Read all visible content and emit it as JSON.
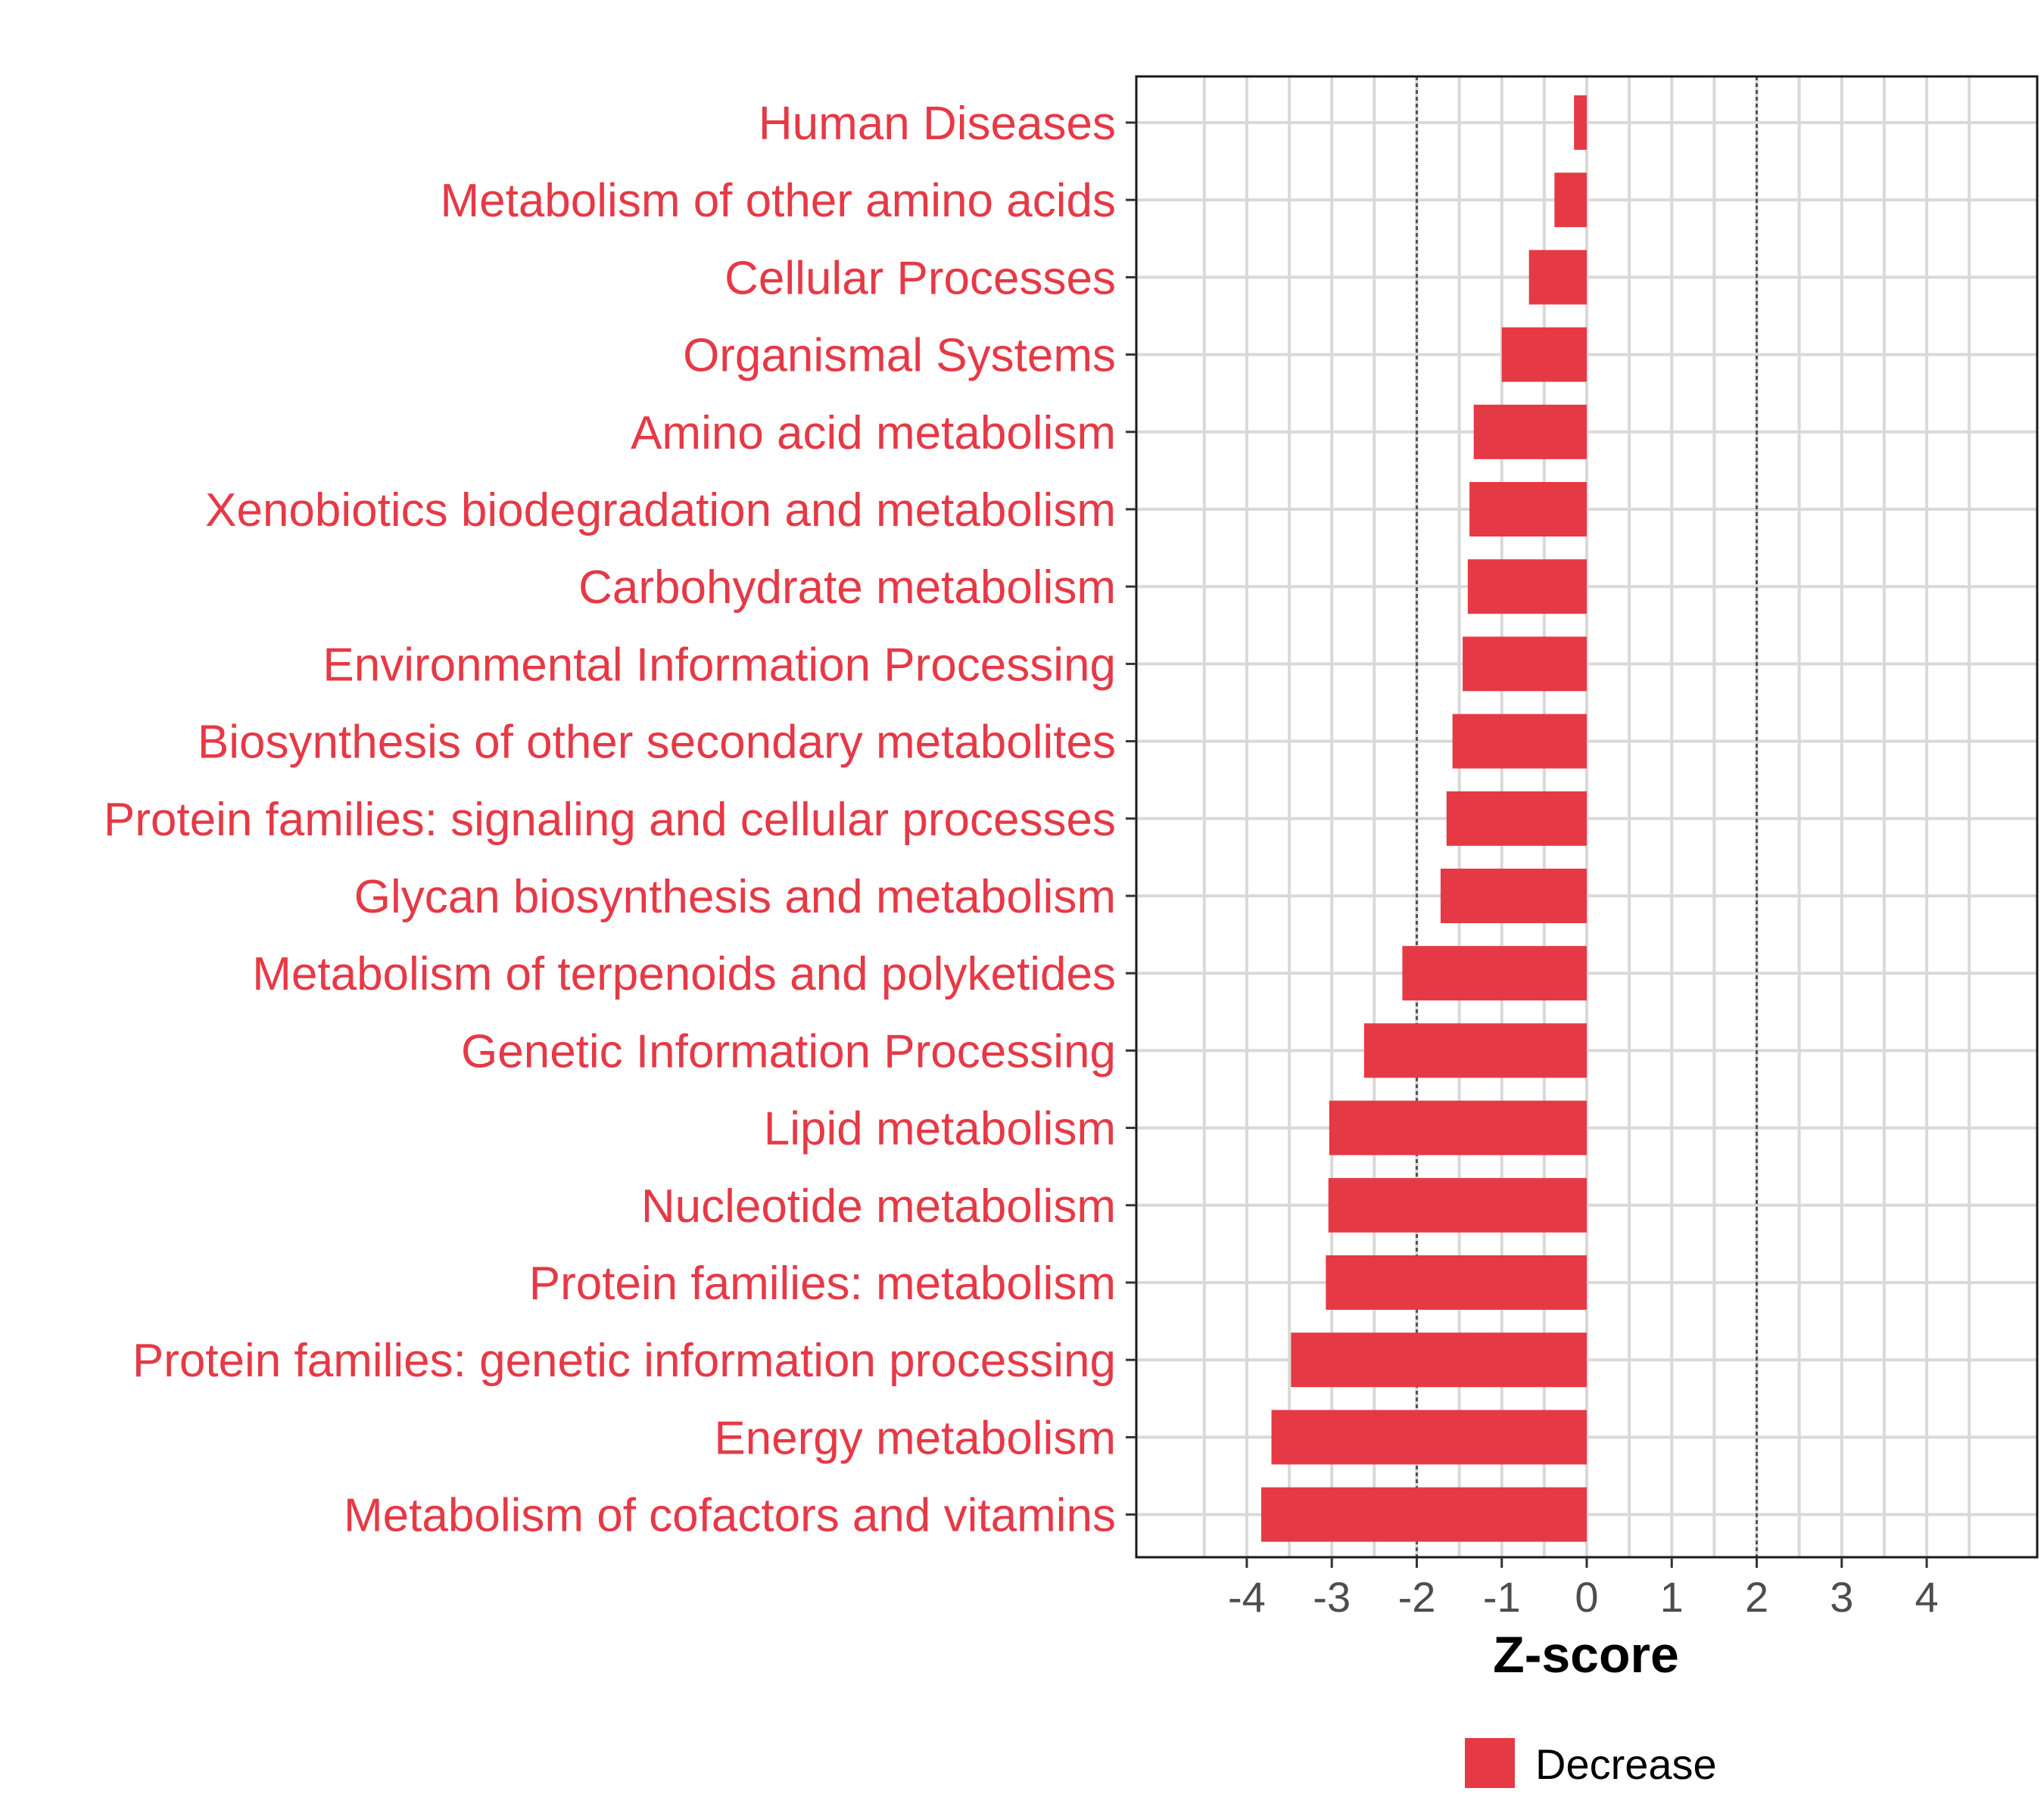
{
  "chart_data": {
    "type": "bar",
    "orientation": "horizontal",
    "categories": [
      "Human Diseases",
      "Metabolism of other amino acids",
      "Cellular Processes",
      "Organismal Systems",
      "Amino acid metabolism",
      "Xenobiotics biodegradation and metabolism",
      "Carbohydrate metabolism",
      "Environmental Information Processing",
      "Biosynthesis of other secondary metabolites",
      "Protein families: signaling and cellular processes",
      "Glycan biosynthesis and metabolism",
      "Metabolism of terpenoids and polyketides",
      "Genetic Information Processing",
      "Lipid metabolism",
      "Nucleotide metabolism",
      "Protein families: metabolism",
      "Protein families: genetic information processing",
      "Energy metabolism",
      "Metabolism of cofactors and vitamins"
    ],
    "series": [
      {
        "name": "Decrease",
        "color": "#e63946",
        "values": [
          -0.15,
          -0.38,
          -0.68,
          -1.0,
          -1.33,
          -1.38,
          -1.4,
          -1.46,
          -1.58,
          -1.65,
          -1.72,
          -2.17,
          -2.62,
          -3.03,
          -3.04,
          -3.07,
          -3.48,
          -3.71,
          -3.83
        ]
      }
    ],
    "xlabel": "Z-score",
    "ylabel": "",
    "xlim": [
      -5.3,
      5.3
    ],
    "xticks": [
      "-4",
      "-3",
      "-2",
      "-1",
      "0",
      "1",
      "2",
      "3",
      "4"
    ],
    "reference_lines": [
      -2,
      2
    ],
    "grid": true,
    "legend": {
      "placement": "bottom",
      "entries": [
        "Decrease"
      ]
    },
    "label_color": "#e63946",
    "bar_color": "#e63946"
  }
}
